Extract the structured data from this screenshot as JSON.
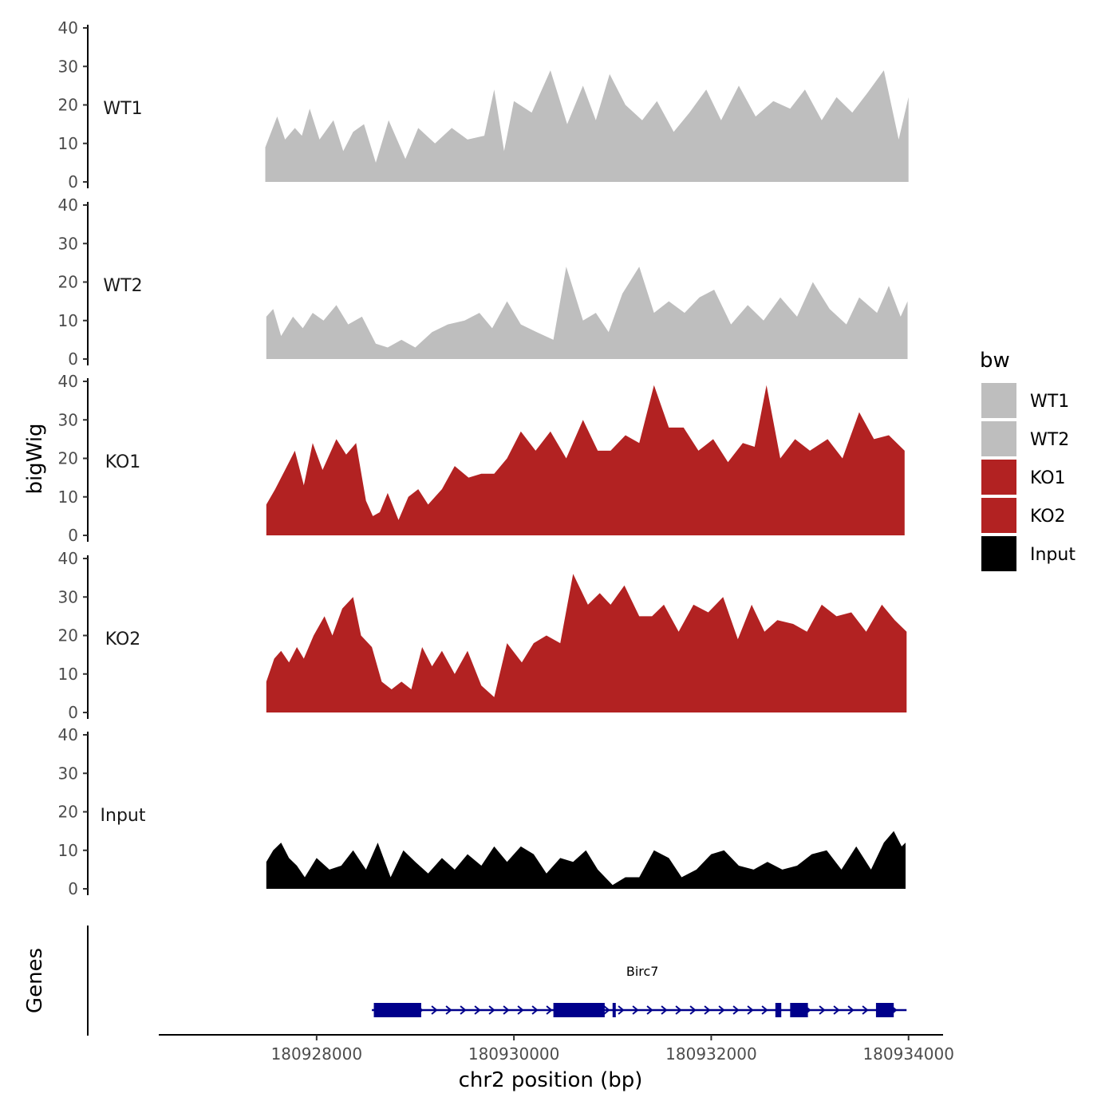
{
  "chart_data": {
    "type": "area",
    "ylabel": "bigWig",
    "xlabel": "chr2 position (bp)",
    "xlim": [
      180926400,
      180934350
    ],
    "ylim": [
      0,
      40
    ],
    "y_ticks": [
      "0",
      "10",
      "20",
      "30",
      "40"
    ],
    "x_ticks": [
      {
        "value": 180928000,
        "label": "180928000"
      },
      {
        "value": 180930000,
        "label": "180930000"
      },
      {
        "value": 180932000,
        "label": "180932000"
      },
      {
        "value": 180934000,
        "label": "180934000"
      }
    ],
    "legend": {
      "title": "bw",
      "placement": "right",
      "entries": [
        {
          "label": "WT1",
          "color": "#bebebe"
        },
        {
          "label": "WT2",
          "color": "#bebebe"
        },
        {
          "label": "KO1",
          "color": "#b22222"
        },
        {
          "label": "KO2",
          "color": "#b22222"
        },
        {
          "label": "Input",
          "color": "#000000"
        }
      ]
    },
    "series": [
      {
        "name": "WT1",
        "color": "#bebebe",
        "x": [
          180927480,
          180927600,
          180927680,
          180927780,
          180927850,
          180927930,
          180928030,
          180928170,
          180928270,
          180928370,
          180928480,
          180928600,
          180928730,
          180928900,
          180929030,
          180929200,
          180929370,
          180929530,
          180929700,
          180929800,
          180929900,
          180930000,
          180930180,
          180930370,
          180930540,
          180930700,
          180930830,
          180930970,
          180931130,
          180931300,
          180931450,
          180931620,
          180931780,
          180931950,
          180932100,
          180932280,
          180932450,
          180932630,
          180932800,
          180932950,
          180933120,
          180933270,
          180933430,
          180933580,
          180933750,
          180933900,
          180934000
        ],
        "y": [
          9,
          17,
          11,
          14,
          12,
          19,
          11,
          16,
          8,
          13,
          15,
          5,
          16,
          6,
          14,
          10,
          14,
          11,
          12,
          24,
          8,
          21,
          18,
          29,
          15,
          25,
          16,
          28,
          20,
          16,
          21,
          13,
          18,
          24,
          16,
          25,
          17,
          21,
          19,
          24,
          16,
          22,
          18,
          23,
          29,
          11,
          22
        ]
      },
      {
        "name": "WT2",
        "color": "#bebebe",
        "x": [
          180927490,
          180927560,
          180927640,
          180927760,
          180927860,
          180927960,
          180928070,
          180928200,
          180928320,
          180928460,
          180928600,
          180928720,
          180928860,
          180929000,
          180929170,
          180929330,
          180929500,
          180929650,
          180929780,
          180929930,
          180930070,
          180930230,
          180930400,
          180930530,
          180930700,
          180930830,
          180930960,
          180931100,
          180931270,
          180931420,
          180931570,
          180931730,
          180931880,
          180932030,
          180932200,
          180932370,
          180932530,
          180932700,
          180932870,
          180933030,
          180933200,
          180933370,
          180933500,
          180933680,
          180933800,
          180933920,
          180933990
        ],
        "y": [
          11,
          13,
          6,
          11,
          8,
          12,
          10,
          14,
          9,
          11,
          4,
          3,
          5,
          3,
          7,
          9,
          10,
          12,
          8,
          15,
          9,
          7,
          5,
          24,
          10,
          12,
          7,
          17,
          24,
          12,
          15,
          12,
          16,
          18,
          9,
          14,
          10,
          16,
          11,
          20,
          13,
          9,
          16,
          12,
          19,
          11,
          15
        ]
      },
      {
        "name": "KO1",
        "color": "#b22222",
        "x": [
          180927490,
          180927580,
          180927680,
          180927780,
          180927870,
          180927960,
          180928060,
          180928200,
          180928300,
          180928400,
          180928500,
          180928570,
          180928640,
          180928720,
          180928830,
          180928930,
          180929030,
          180929130,
          180929270,
          180929400,
          180929540,
          180929670,
          180929800,
          180929930,
          180930070,
          180930220,
          180930370,
          180930530,
          180930700,
          180930850,
          180930980,
          180931130,
          180931270,
          180931420,
          180931570,
          180931720,
          180931870,
          180932020,
          180932170,
          180932320,
          180932440,
          180932560,
          180932700,
          180932850,
          180933000,
          180933180,
          180933330,
          180933500,
          180933650,
          180933800,
          180933960
        ],
        "y": [
          8,
          12,
          17,
          22,
          13,
          24,
          17,
          25,
          21,
          24,
          9,
          5,
          6,
          11,
          4,
          10,
          12,
          8,
          12,
          18,
          15,
          16,
          16,
          20,
          27,
          22,
          27,
          20,
          30,
          22,
          22,
          26,
          24,
          39,
          28,
          28,
          22,
          25,
          19,
          24,
          23,
          39,
          20,
          25,
          22,
          25,
          20,
          32,
          25,
          26,
          22
        ]
      },
      {
        "name": "KO2",
        "color": "#b22222",
        "x": [
          180927490,
          180927570,
          180927640,
          180927720,
          180927800,
          180927870,
          180927970,
          180928080,
          180928160,
          180928260,
          180928370,
          180928450,
          180928560,
          180928660,
          180928760,
          180928860,
          180928960,
          180929070,
          180929170,
          180929270,
          180929400,
          180929530,
          180929670,
          180929800,
          180929930,
          180930080,
          180930200,
          180930330,
          180930470,
          180930600,
          180930750,
          180930870,
          180930980,
          180931120,
          180931270,
          180931400,
          180931520,
          180931670,
          180931820,
          180931970,
          180932120,
          180932270,
          180932410,
          180932540,
          180932670,
          180932830,
          180932970,
          180933120,
          180933270,
          180933420,
          180933570,
          180933730,
          180933860,
          180933980
        ],
        "y": [
          8,
          14,
          16,
          13,
          17,
          14,
          20,
          25,
          20,
          27,
          30,
          20,
          17,
          8,
          6,
          8,
          6,
          17,
          12,
          16,
          10,
          16,
          7,
          4,
          18,
          13,
          18,
          20,
          18,
          36,
          28,
          31,
          28,
          33,
          25,
          25,
          28,
          21,
          28,
          26,
          30,
          19,
          28,
          21,
          24,
          23,
          21,
          28,
          25,
          26,
          21,
          28,
          24,
          21
        ]
      },
      {
        "name": "Input",
        "color": "#000000",
        "x": [
          180927490,
          180927560,
          180927640,
          180927720,
          180927800,
          180927880,
          180928000,
          180928130,
          180928250,
          180928370,
          180928500,
          180928620,
          180928750,
          180928880,
          180929000,
          180929130,
          180929270,
          180929400,
          180929530,
          180929670,
          180929800,
          180929930,
          180930070,
          180930200,
          180930330,
          180930470,
          180930600,
          180930730,
          180930850,
          180931000,
          180931130,
          180931270,
          180931420,
          180931570,
          180931700,
          180931850,
          180932000,
          180932130,
          180932280,
          180932430,
          180932570,
          180932720,
          180932870,
          180933020,
          180933170,
          180933320,
          180933470,
          180933620,
          180933750,
          180933850,
          180933930,
          180933970
        ],
        "y": [
          7,
          10,
          12,
          8,
          6,
          3,
          8,
          5,
          6,
          10,
          5,
          12,
          3,
          10,
          7,
          4,
          8,
          5,
          9,
          6,
          11,
          7,
          11,
          9,
          4,
          8,
          7,
          10,
          5,
          1,
          3,
          3,
          10,
          8,
          3,
          5,
          9,
          10,
          6,
          5,
          7,
          5,
          6,
          9,
          10,
          5,
          11,
          5,
          12,
          15,
          11,
          12
        ]
      }
    ],
    "gene_track": {
      "label": "Genes",
      "genes": [
        {
          "name": "Birc7",
          "color": "#00008b",
          "start": 180928560,
          "end": 180933980,
          "exons": [
            [
              180928580,
              180929060
            ],
            [
              180930400,
              180930920
            ],
            [
              180931000,
              180931030
            ],
            [
              180932650,
              180932710
            ],
            [
              180932800,
              180932980
            ],
            [
              180933670,
              180933850
            ]
          ]
        }
      ]
    }
  }
}
